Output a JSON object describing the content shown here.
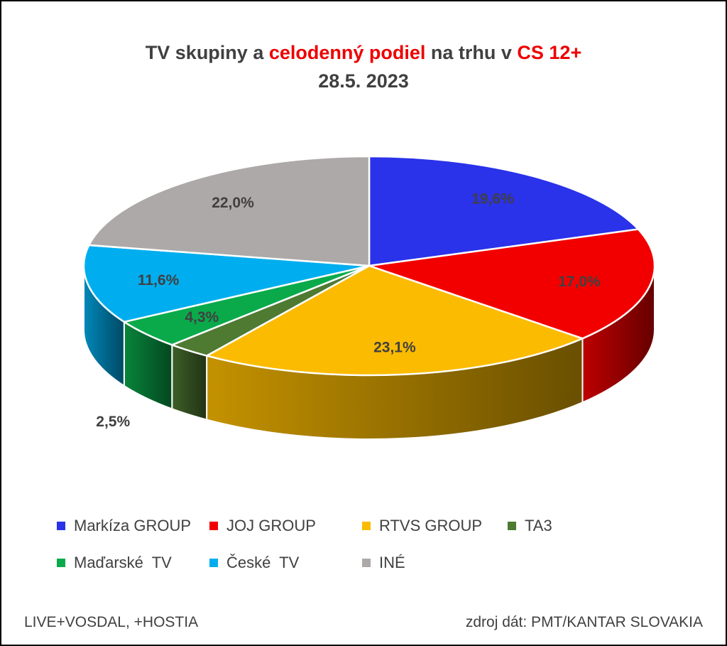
{
  "chart_data": {
    "type": "pie",
    "title_parts": [
      {
        "text": "TV skupiny a ",
        "highlight": false
      },
      {
        "text": "celodenný podiel",
        "highlight": true
      },
      {
        "text": " na trhu v ",
        "highlight": false
      },
      {
        "text": "CS 12+",
        "highlight": true
      }
    ],
    "subtitle": "28.5. 2023",
    "title_color": "#404040",
    "highlight_color": "#ee0000",
    "slices": [
      {
        "name": "Markíza GROUP",
        "value": 19.6,
        "label": "19,6%",
        "color": "#2a32ea"
      },
      {
        "name": "JOJ GROUP",
        "value": 17.0,
        "label": "17,0%",
        "color": "#f20000"
      },
      {
        "name": "RTVS GROUP",
        "value": 23.1,
        "label": "23,1%",
        "color": "#fbbb00"
      },
      {
        "name": "TA3",
        "value": 2.5,
        "label": "2,5%",
        "color": "#4e7a32"
      },
      {
        "name": "Maďarské  TV",
        "value": 4.3,
        "label": "4,3%",
        "color": "#0aaa4b"
      },
      {
        "name": "České  TV",
        "value": 11.6,
        "label": "11,6%",
        "color": "#00aeef"
      },
      {
        "name": "INÉ",
        "value": 22.0,
        "label": "22,0%",
        "color": "#ada9a8"
      }
    ],
    "legend_position": "bottom"
  },
  "footer": {
    "left": "LIVE+VOSDAL,  +HOSTIA",
    "right": "zdroj dát: PMT/KANTAR SLOVAKIA"
  }
}
